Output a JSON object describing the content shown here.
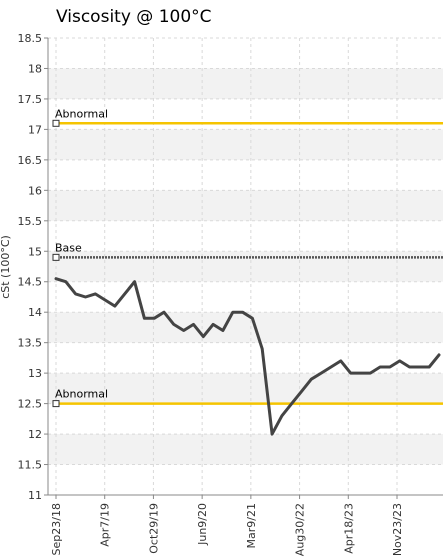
{
  "chart_data": {
    "type": "line",
    "title": "Viscosity @ 100°C",
    "ylabel": "cSt (100°C)",
    "xlabel": "",
    "ylim": [
      11,
      18.5
    ],
    "yticks": [
      "11",
      "11.5",
      "12",
      "12.5",
      "13",
      "13.5",
      "14",
      "14.5",
      "15",
      "15.5",
      "16",
      "16.5",
      "17",
      "17.5",
      "18",
      "18.5"
    ],
    "xticks": [
      "Sep23/18",
      "Apr7/19",
      "Oct29/19",
      "Jun9/20",
      "Mar9/21",
      "Aug30/22",
      "Apr18/23",
      "Nov23/23"
    ],
    "grid": true,
    "reference_lines": [
      {
        "label": "Abnormal",
        "value": 17.1,
        "color": "#f5c400"
      },
      {
        "label": "Base",
        "value": 14.9,
        "color": "#555555"
      },
      {
        "label": "Abnormal",
        "value": 12.5,
        "color": "#f5c400"
      }
    ],
    "series": [
      {
        "color": "#444444",
        "values": [
          14.55,
          14.5,
          14.3,
          14.25,
          14.3,
          14.2,
          14.1,
          14.3,
          14.5,
          13.9,
          13.9,
          14.0,
          13.8,
          13.7,
          13.8,
          13.6,
          13.8,
          13.7,
          14.0,
          14.0,
          13.9,
          13.4,
          12.0,
          12.3,
          12.5,
          12.7,
          12.9,
          13.0,
          13.1,
          13.2,
          13.0,
          13.0,
          13.0,
          13.1,
          13.1,
          13.2,
          13.1,
          13.1,
          13.1,
          13.3
        ]
      }
    ]
  }
}
